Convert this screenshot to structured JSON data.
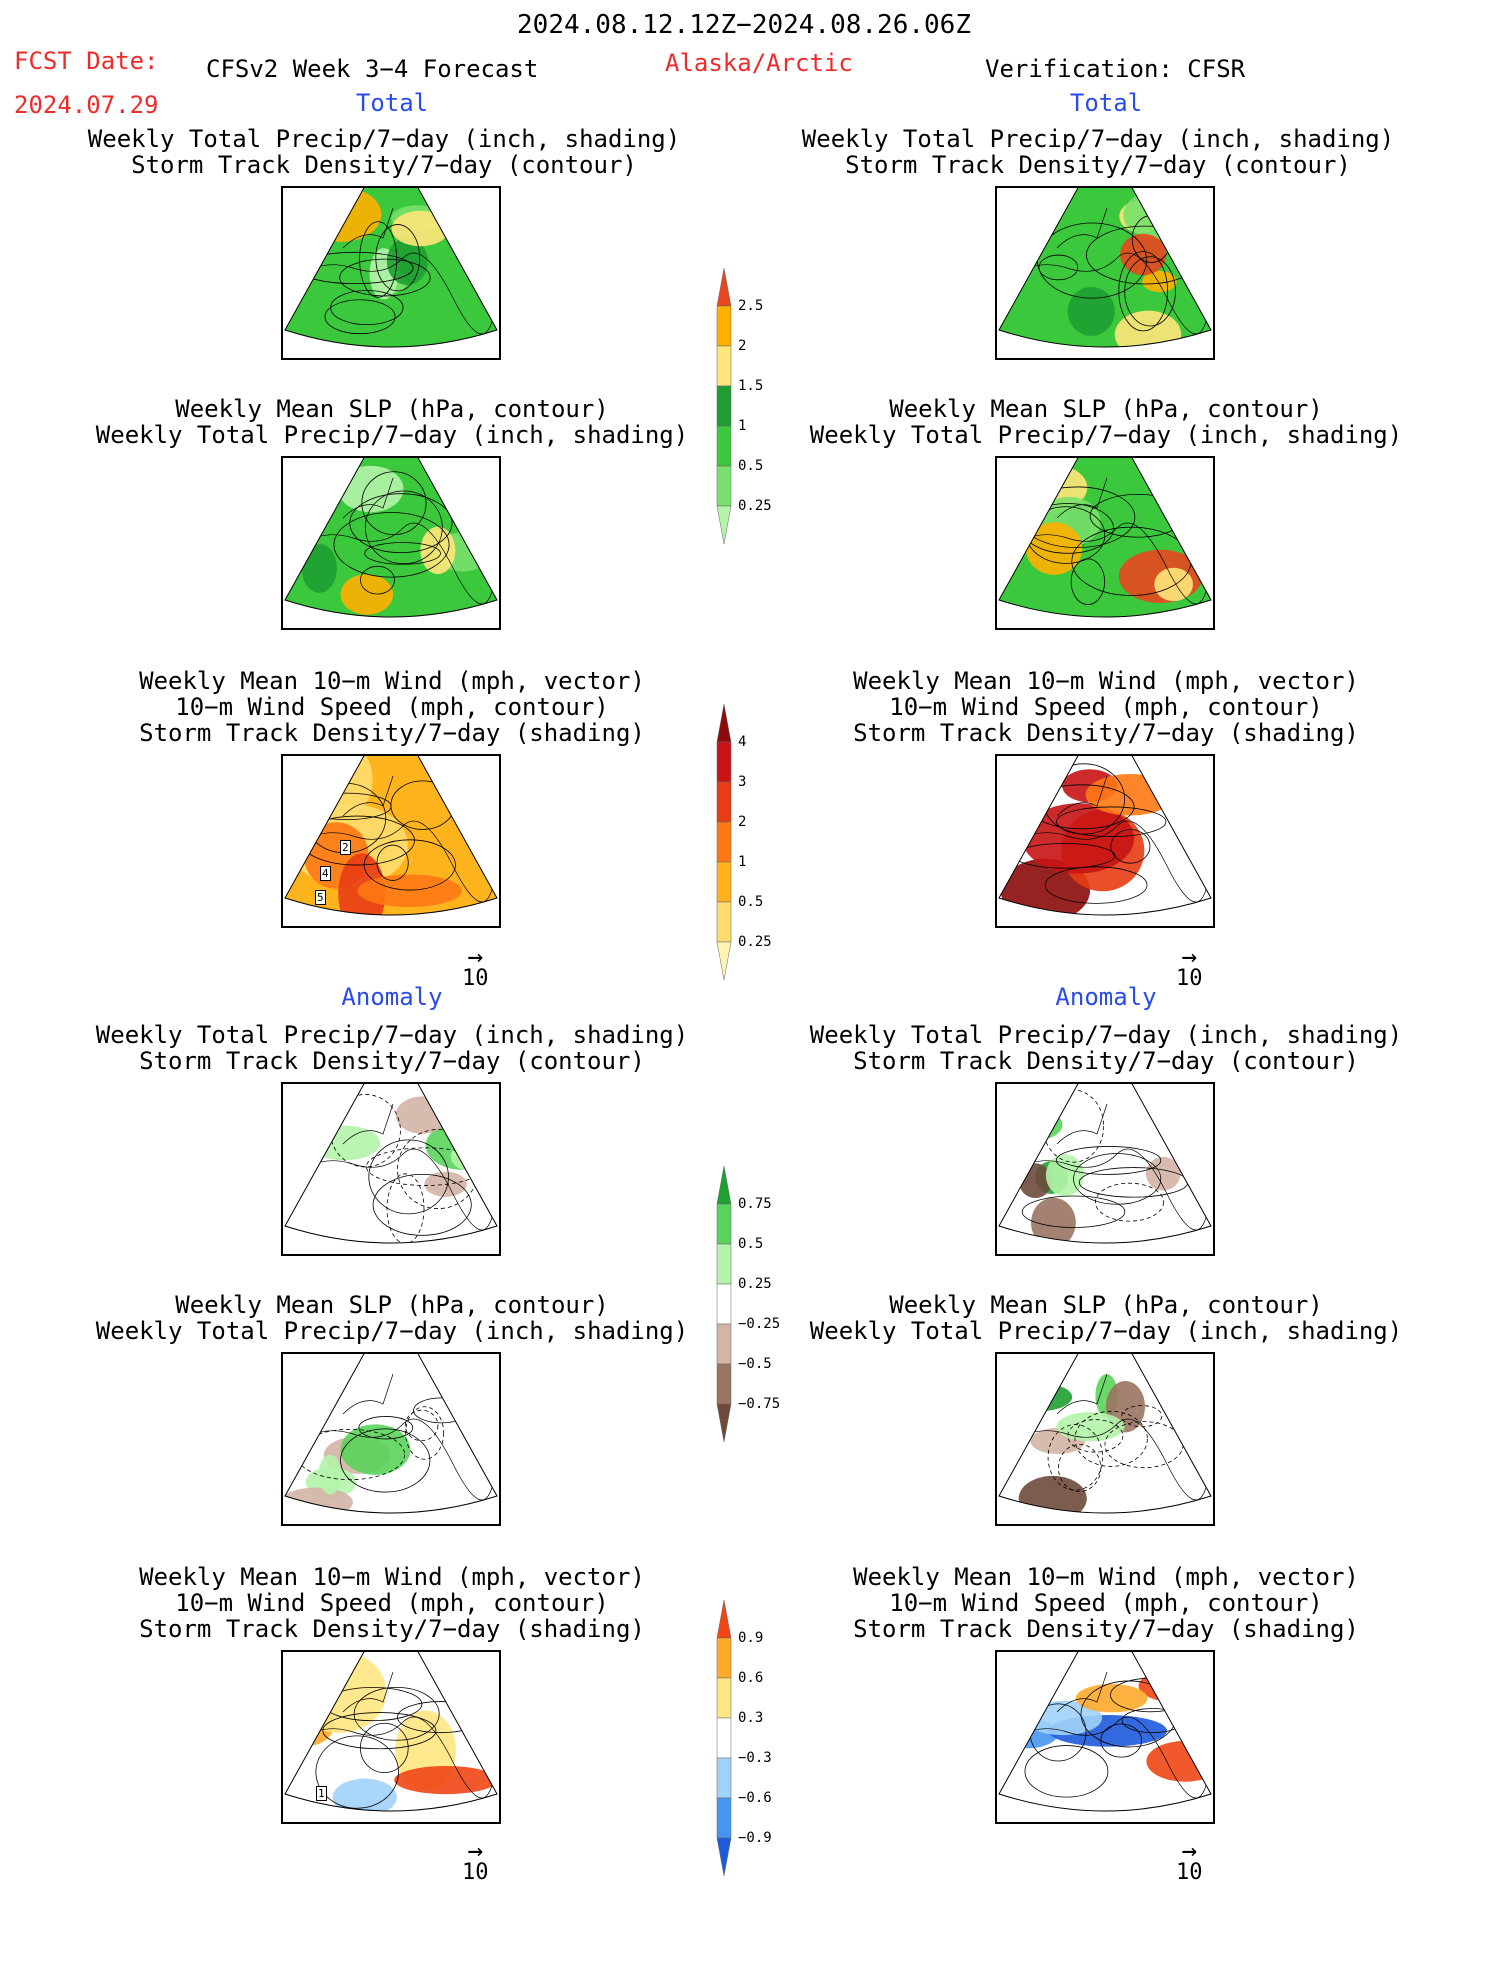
{
  "header": {
    "date_range": "2024.08.12.12Z−2024.08.26.06Z",
    "fcst_label": "FCST Date:",
    "fcst_date": "2024.07.29",
    "model": "CFSv2 Week 3−4 Forecast",
    "region": "Alaska/Arctic",
    "verification": "Verification: CFSR"
  },
  "sections": {
    "total": "Total",
    "anomaly": "Anomaly"
  },
  "panel_titles": {
    "precip_track": [
      "Weekly Total Precip/7−day (inch, shading)",
      "Storm Track Density/7−day (contour)"
    ],
    "slp_precip": [
      "Weekly Mean SLP (hPa, contour)",
      "Weekly Total Precip/7−day (inch, shading)"
    ],
    "wind": [
      "Weekly Mean 10−m Wind (mph, vector)",
      "10−m Wind Speed (mph, contour)",
      "Storm Track Density/7−day (shading)"
    ]
  },
  "vector_ref": "10",
  "colorbars": {
    "precip_total": [
      "2.5",
      "2",
      "1.5",
      "1",
      "0.5",
      "0.25"
    ],
    "track_total": [
      "4",
      "3",
      "2",
      "1",
      "0.5",
      "0.25"
    ],
    "precip_anom": [
      "0.75",
      "0.5",
      "0.25",
      "−0.25",
      "−0.5",
      "−0.75"
    ],
    "track_anom": [
      "0.9",
      "0.6",
      "0.3",
      "−0.3",
      "−0.6",
      "−0.9"
    ]
  },
  "contour_labels": {
    "wind_total_fcst": [
      "2",
      "4",
      "5"
    ],
    "wind_anom_fcst": [
      "1"
    ]
  },
  "colors": {
    "header_red": "#ee2b2b",
    "section_blue": "#2a4be8",
    "precip": [
      "#b4f4aa",
      "#78e06c",
      "#3cc83c",
      "#1e9e32",
      "#ffe67a",
      "#ffb000",
      "#e8461e"
    ],
    "track": [
      "#fff5b0",
      "#ffdc6e",
      "#ffb41e",
      "#ff7814",
      "#e83c14",
      "#c81414",
      "#8c0a0a"
    ],
    "precip_anom": [
      "#6e4a3c",
      "#9a7462",
      "#d4b4a6",
      "#ffffff",
      "#b4f4aa",
      "#5ad45a",
      "#1ea032"
    ],
    "track_anom": [
      "#1e5adc",
      "#4696f0",
      "#a0d2fa",
      "#ffffff",
      "#ffe682",
      "#ffaa2a",
      "#f04614"
    ]
  }
}
